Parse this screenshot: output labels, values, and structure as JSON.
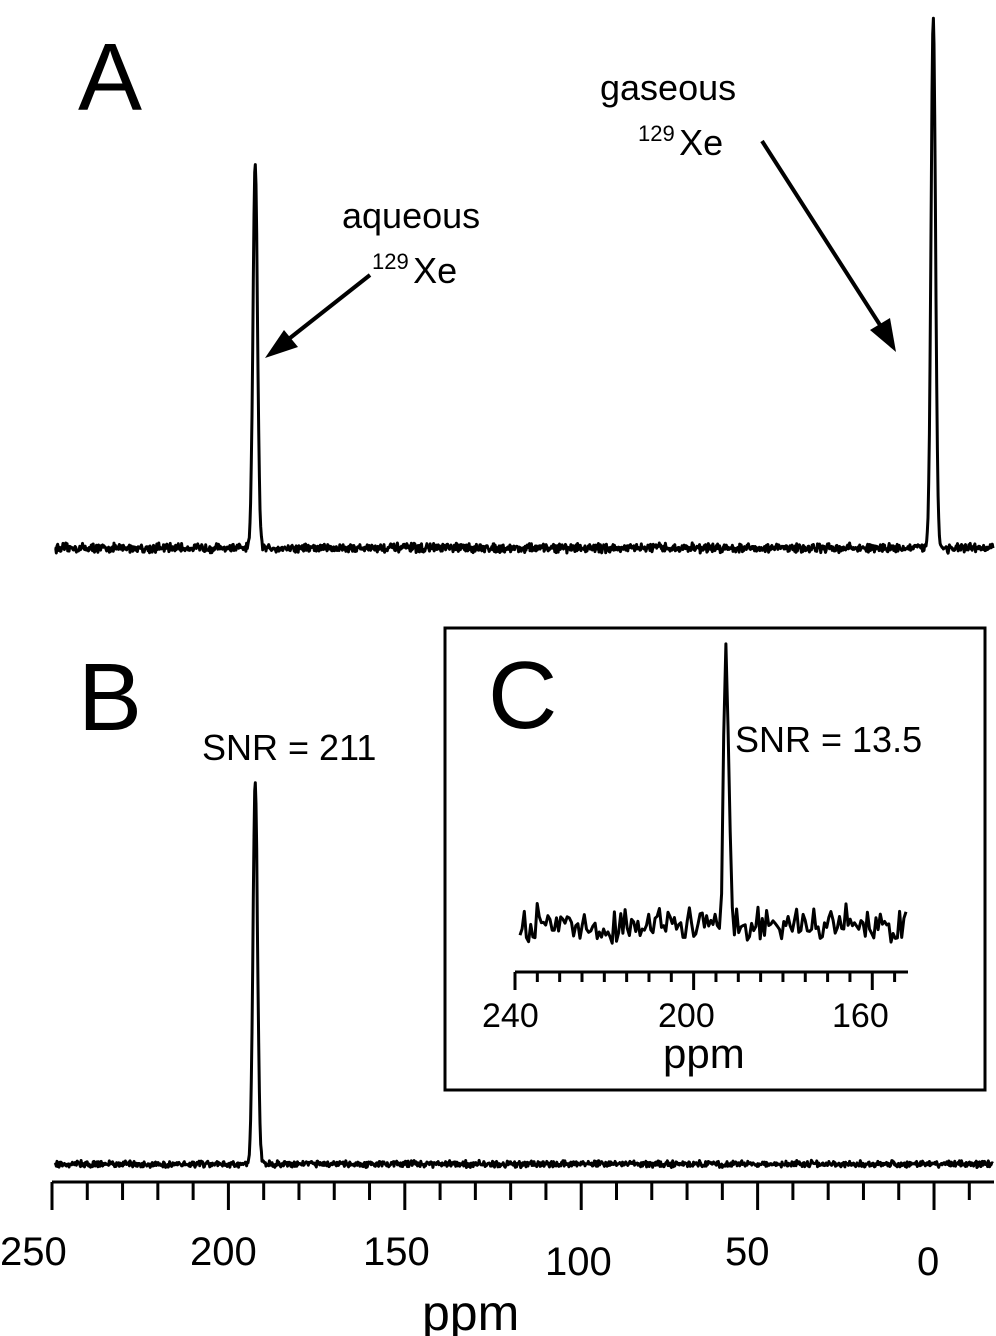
{
  "panel_labels": {
    "a": "A",
    "b": "B",
    "c": "C"
  },
  "annotations": {
    "aqueous_line1": "aqueous",
    "aqueous_isotope": "129",
    "aqueous_element": "Xe",
    "gaseous_line1": "gaseous",
    "gaseous_isotope": "129",
    "gaseous_element": "Xe",
    "snr_b": "SNR = 211",
    "snr_c": "SNR = 13.5"
  },
  "colors": {
    "line": "#000000",
    "background": "#ffffff"
  },
  "chart_data": [
    {
      "panel": "A",
      "type": "line",
      "title": "",
      "xlabel": "",
      "ylabel": "",
      "xlim": [
        250,
        -17
      ],
      "x_reversed": true,
      "peaks": [
        {
          "label": "aqueous 129Xe",
          "position_ppm": 193,
          "relative_height": 0.72
        },
        {
          "label": "gaseous 129Xe",
          "position_ppm": 0,
          "relative_height": 1.0
        }
      ],
      "noise_level": 0.01
    },
    {
      "panel": "B",
      "type": "line",
      "title": "",
      "xlabel": "ppm",
      "ylabel": "",
      "xlim": [
        250,
        -17
      ],
      "x_reversed": true,
      "x_tick_labels": [
        "250",
        "200",
        "150",
        "100",
        "50",
        "0"
      ],
      "x_ticks": [
        250,
        200,
        150,
        100,
        50,
        0
      ],
      "peaks": [
        {
          "label": "SNR = 211",
          "position_ppm": 193,
          "relative_height": 1.0
        }
      ],
      "snr": 211,
      "noise_level": 0.01
    },
    {
      "panel": "C",
      "type": "line",
      "title": "",
      "xlabel": "ppm",
      "ylabel": "",
      "xlim": [
        240,
        152
      ],
      "x_reversed": true,
      "x_tick_labels": [
        "240",
        "200",
        "160"
      ],
      "x_ticks": [
        240,
        200,
        160
      ],
      "peaks": [
        {
          "label": "SNR = 13.5",
          "position_ppm": 193,
          "relative_height": 1.0
        }
      ],
      "snr": 13.5,
      "noise_level": 0.08
    }
  ]
}
